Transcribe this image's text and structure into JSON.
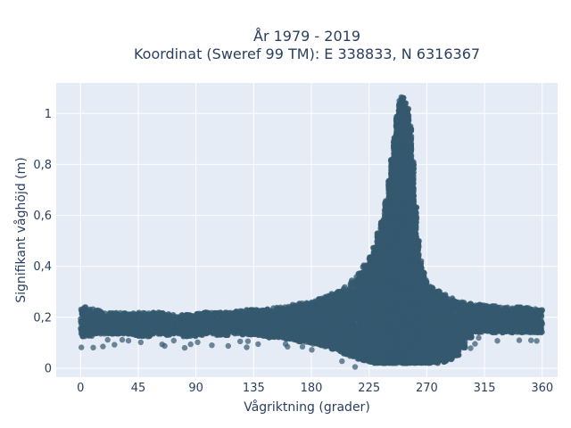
{
  "chart_data": {
    "type": "scatter",
    "title_lines": [
      "År 1979 - 2019",
      "Koordinat (Sweref 99 TM): E 338833, N 6316367"
    ],
    "xlabel": "Vågriktning (grader)",
    "ylabel": "Signifikant våghöjd (m)",
    "xlim": [
      -19,
      372
    ],
    "ylim": [
      -0.035,
      1.12
    ],
    "x_ticks": [
      0,
      45,
      90,
      135,
      180,
      225,
      270,
      315,
      360
    ],
    "x_tick_labels": [
      "0",
      "45",
      "90",
      "135",
      "180",
      "225",
      "270",
      "315",
      "360"
    ],
    "y_ticks": [
      0,
      0.2,
      0.4,
      0.6,
      0.8,
      1
    ],
    "y_tick_labels": [
      "0",
      "0,2",
      "0,4",
      "0,6",
      "0,8",
      "1"
    ],
    "grid": true,
    "marker_color": "#34586e",
    "background_color": "#e5ecf6",
    "series": [
      {
        "x": [
          0,
          5,
          10,
          15,
          20,
          25,
          30,
          35,
          40,
          45,
          50,
          55,
          60,
          65,
          70,
          75,
          80,
          85,
          90,
          95,
          100,
          105,
          110,
          115,
          120,
          125,
          130,
          135,
          140,
          145,
          150,
          155,
          160,
          165,
          170,
          175,
          180,
          185,
          190,
          195,
          200,
          205,
          210,
          215,
          220,
          225,
          228,
          231,
          234,
          237,
          240,
          242,
          244,
          246,
          248,
          250,
          252,
          254,
          256,
          258,
          260,
          262,
          264,
          266,
          268,
          270,
          275,
          280,
          285,
          290,
          295,
          300,
          305,
          310,
          315,
          320,
          325,
          330,
          335,
          340,
          345,
          350,
          355,
          360
        ],
        "y_min": [
          0.13,
          0.12,
          0.13,
          0.14,
          0.13,
          0.14,
          0.13,
          0.14,
          0.13,
          0.13,
          0.12,
          0.13,
          0.14,
          0.13,
          0.13,
          0.14,
          0.13,
          0.12,
          0.13,
          0.13,
          0.14,
          0.13,
          0.13,
          0.13,
          0.14,
          0.13,
          0.13,
          0.13,
          0.13,
          0.12,
          0.12,
          0.12,
          0.12,
          0.11,
          0.11,
          0.1,
          0.1,
          0.09,
          0.09,
          0.08,
          0.07,
          0.06,
          0.05,
          0.04,
          0.03,
          0.03,
          0.02,
          0.02,
          0.02,
          0.02,
          0.02,
          0.02,
          0.02,
          0.02,
          0.02,
          0.02,
          0.02,
          0.02,
          0.02,
          0.02,
          0.02,
          0.02,
          0.02,
          0.02,
          0.02,
          0.02,
          0.02,
          0.02,
          0.03,
          0.04,
          0.06,
          0.1,
          0.14,
          0.14,
          0.14,
          0.14,
          0.14,
          0.14,
          0.14,
          0.14,
          0.14,
          0.14,
          0.14,
          0.14
        ],
        "y_max": [
          0.24,
          0.24,
          0.23,
          0.23,
          0.22,
          0.22,
          0.22,
          0.22,
          0.22,
          0.22,
          0.22,
          0.22,
          0.22,
          0.22,
          0.21,
          0.21,
          0.21,
          0.21,
          0.21,
          0.22,
          0.22,
          0.22,
          0.22,
          0.22,
          0.22,
          0.23,
          0.23,
          0.23,
          0.23,
          0.23,
          0.24,
          0.24,
          0.24,
          0.25,
          0.25,
          0.26,
          0.26,
          0.27,
          0.28,
          0.29,
          0.3,
          0.31,
          0.33,
          0.36,
          0.39,
          0.42,
          0.46,
          0.5,
          0.56,
          0.62,
          0.7,
          0.78,
          0.86,
          0.95,
          1.03,
          1.07,
          1.06,
          1.04,
          1.0,
          0.9,
          0.72,
          0.55,
          0.45,
          0.4,
          0.36,
          0.34,
          0.31,
          0.3,
          0.28,
          0.27,
          0.26,
          0.26,
          0.25,
          0.25,
          0.25,
          0.25,
          0.24,
          0.24,
          0.24,
          0.24,
          0.24,
          0.24,
          0.23,
          0.23
        ]
      }
    ]
  }
}
